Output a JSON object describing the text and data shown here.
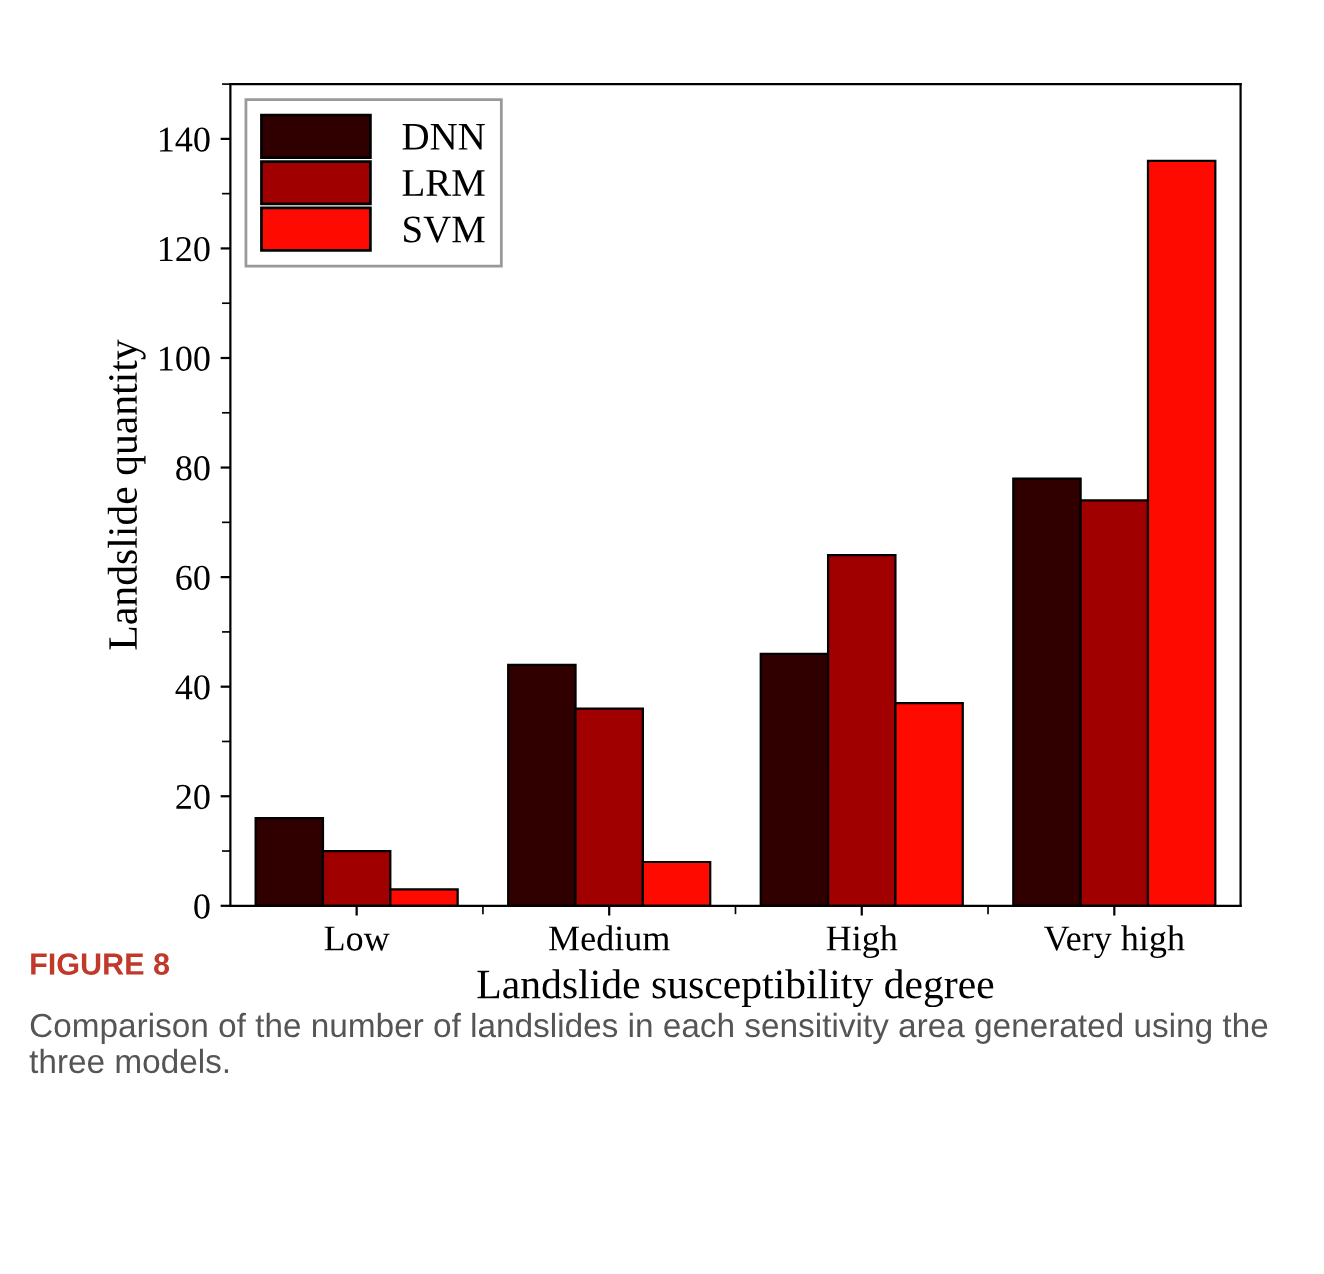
{
  "chart_data": {
    "type": "bar",
    "xlabel": "Landslide susceptibility degree",
    "ylabel": "Landslide quantity",
    "categories": [
      "Low",
      "Medium",
      "High",
      "Very high"
    ],
    "series": [
      {
        "name": "DNN",
        "color": "#300000",
        "values": [
          16,
          44,
          46,
          78
        ]
      },
      {
        "name": "LRM",
        "color": "#a00000",
        "values": [
          10,
          36,
          64,
          74
        ]
      },
      {
        "name": "SVM",
        "color": "#ff0a00",
        "values": [
          3,
          8,
          37,
          136
        ]
      }
    ],
    "ylim": [
      0,
      150
    ],
    "yticks": [
      0,
      20,
      40,
      60,
      80,
      100,
      120,
      140
    ],
    "grid": false,
    "legend": "top left",
    "annotations": [
      "FIGURE 8",
      "Comparison of the number of landslides in each sensitivity area generated using the three models."
    ]
  }
}
